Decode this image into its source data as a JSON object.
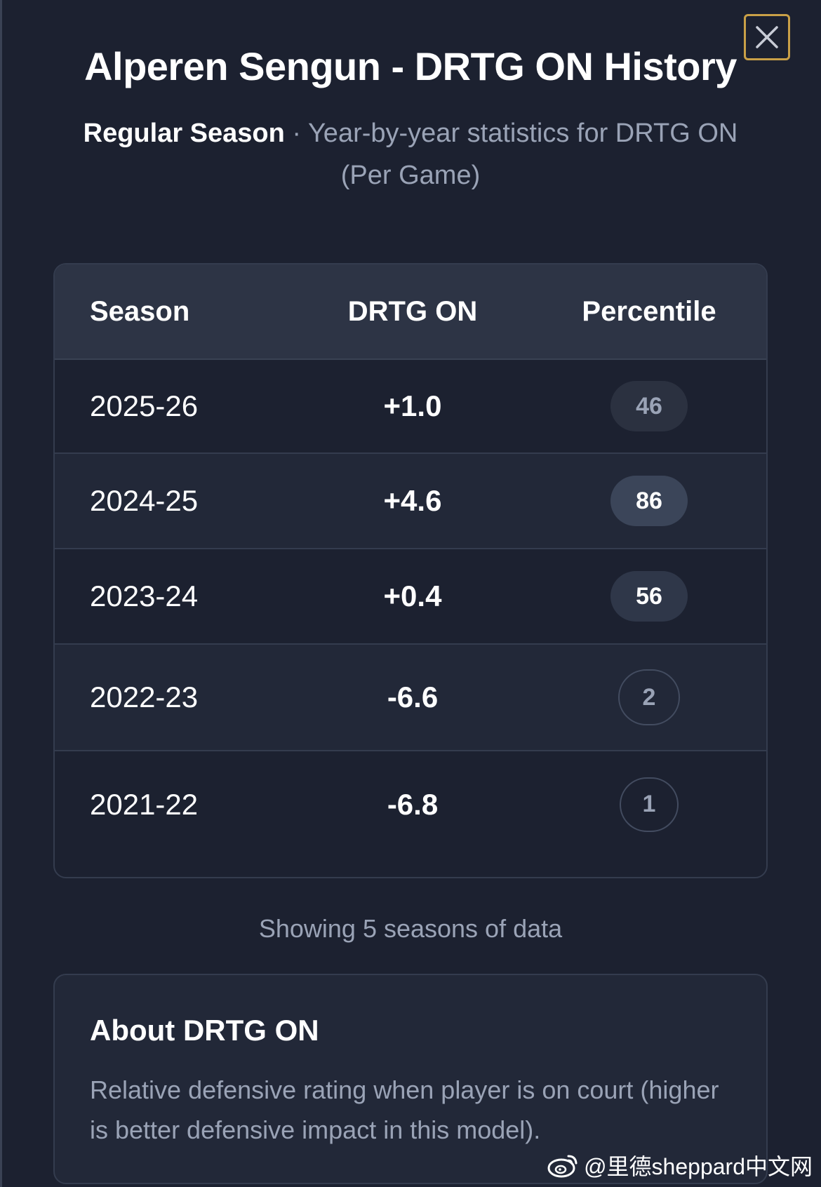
{
  "modal": {
    "title": "Alperen Sengun - DRTG ON History",
    "subtitle_strong": "Regular Season",
    "subtitle_sep": " · ",
    "subtitle_text": "Year-by-year statistics for DRTG ON (Per Game)",
    "close_icon": "close-icon"
  },
  "table": {
    "headers": [
      "Season",
      "DRTG ON",
      "Percentile"
    ],
    "rows": [
      {
        "season": "2025-26",
        "drtg_on": "+1.0",
        "percentile": "46"
      },
      {
        "season": "2024-25",
        "drtg_on": "+4.6",
        "percentile": "86"
      },
      {
        "season": "2023-24",
        "drtg_on": "+0.4",
        "percentile": "56"
      },
      {
        "season": "2022-23",
        "drtg_on": "-6.6",
        "percentile": "2"
      },
      {
        "season": "2021-22",
        "drtg_on": "-6.8",
        "percentile": "1"
      }
    ]
  },
  "footer_note": "Showing 5 seasons of data",
  "about": {
    "title": "About DRTG ON",
    "text": "Relative defensive rating when player is on court (higher is better defensive impact in this model)."
  },
  "watermark": {
    "text": "@里德sheppard中文网",
    "icon": "weibo-icon"
  },
  "colors": {
    "background": "#1c2130",
    "header_bg": "#2d3445",
    "close_border": "#c9a047",
    "muted_text": "#9aa3b6"
  }
}
